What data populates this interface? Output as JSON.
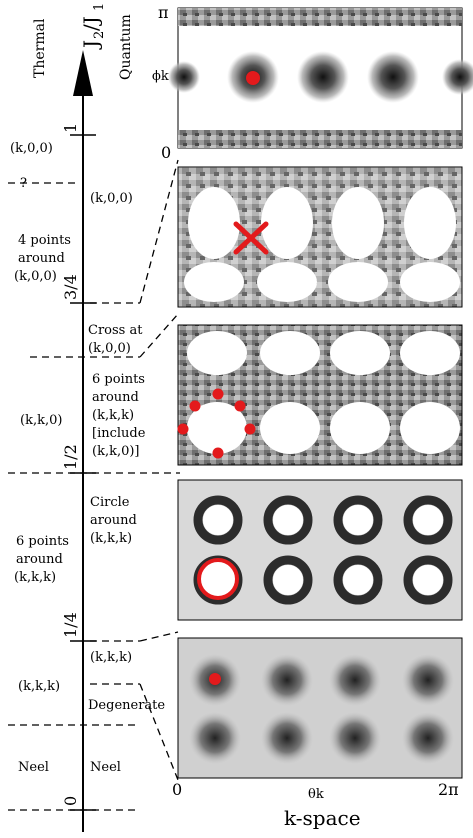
{
  "header": {
    "thermal": "Thermal",
    "quantum": "Quantum",
    "axis_label_main": "J",
    "axis_label_sub1": "2",
    "axis_label_slash": "/J",
    "axis_label_sub2": "1"
  },
  "axis_ticks": {
    "t1": "1",
    "t34": "3/4",
    "t12": "1/2",
    "t14": "1/4",
    "t0": "0"
  },
  "thermal_labels": {
    "k00": "(k,0,0)",
    "q": "?",
    "four_pts_1": "4 points",
    "four_pts_2": "around",
    "four_pts_3": "(k,0,0)",
    "kk0": "(k,k,0)",
    "six_pts_1": "6 points",
    "six_pts_2": "around",
    "six_pts_3": "(k,k,k)",
    "kkk": "(k,k,k)",
    "neel": "Neel"
  },
  "quantum_labels": {
    "k00": "(k,0,0)",
    "cross_1": "Cross at",
    "cross_2": "(k,0,0)",
    "six_1": "6 points",
    "six_2": "around",
    "six_3": "(k,k,k)",
    "six_4": "[include",
    "six_5": "(k,k,0)]",
    "circle_1": "Circle",
    "circle_2": "around",
    "circle_3": "(k,k,k)",
    "kkk": "(k,k,k)",
    "degenerate": "Degenerate",
    "neel": "Neel"
  },
  "panel_axes": {
    "pi": "π",
    "phi": "ϕk",
    "zero_y": "0",
    "zero_x": "0",
    "theta": "θk",
    "two_pi": "2π",
    "kspace": "k-space"
  },
  "colors": {
    "marker": "#e31a1c",
    "dark": "#1a1a1a",
    "panel_bg": "#ffffff"
  }
}
